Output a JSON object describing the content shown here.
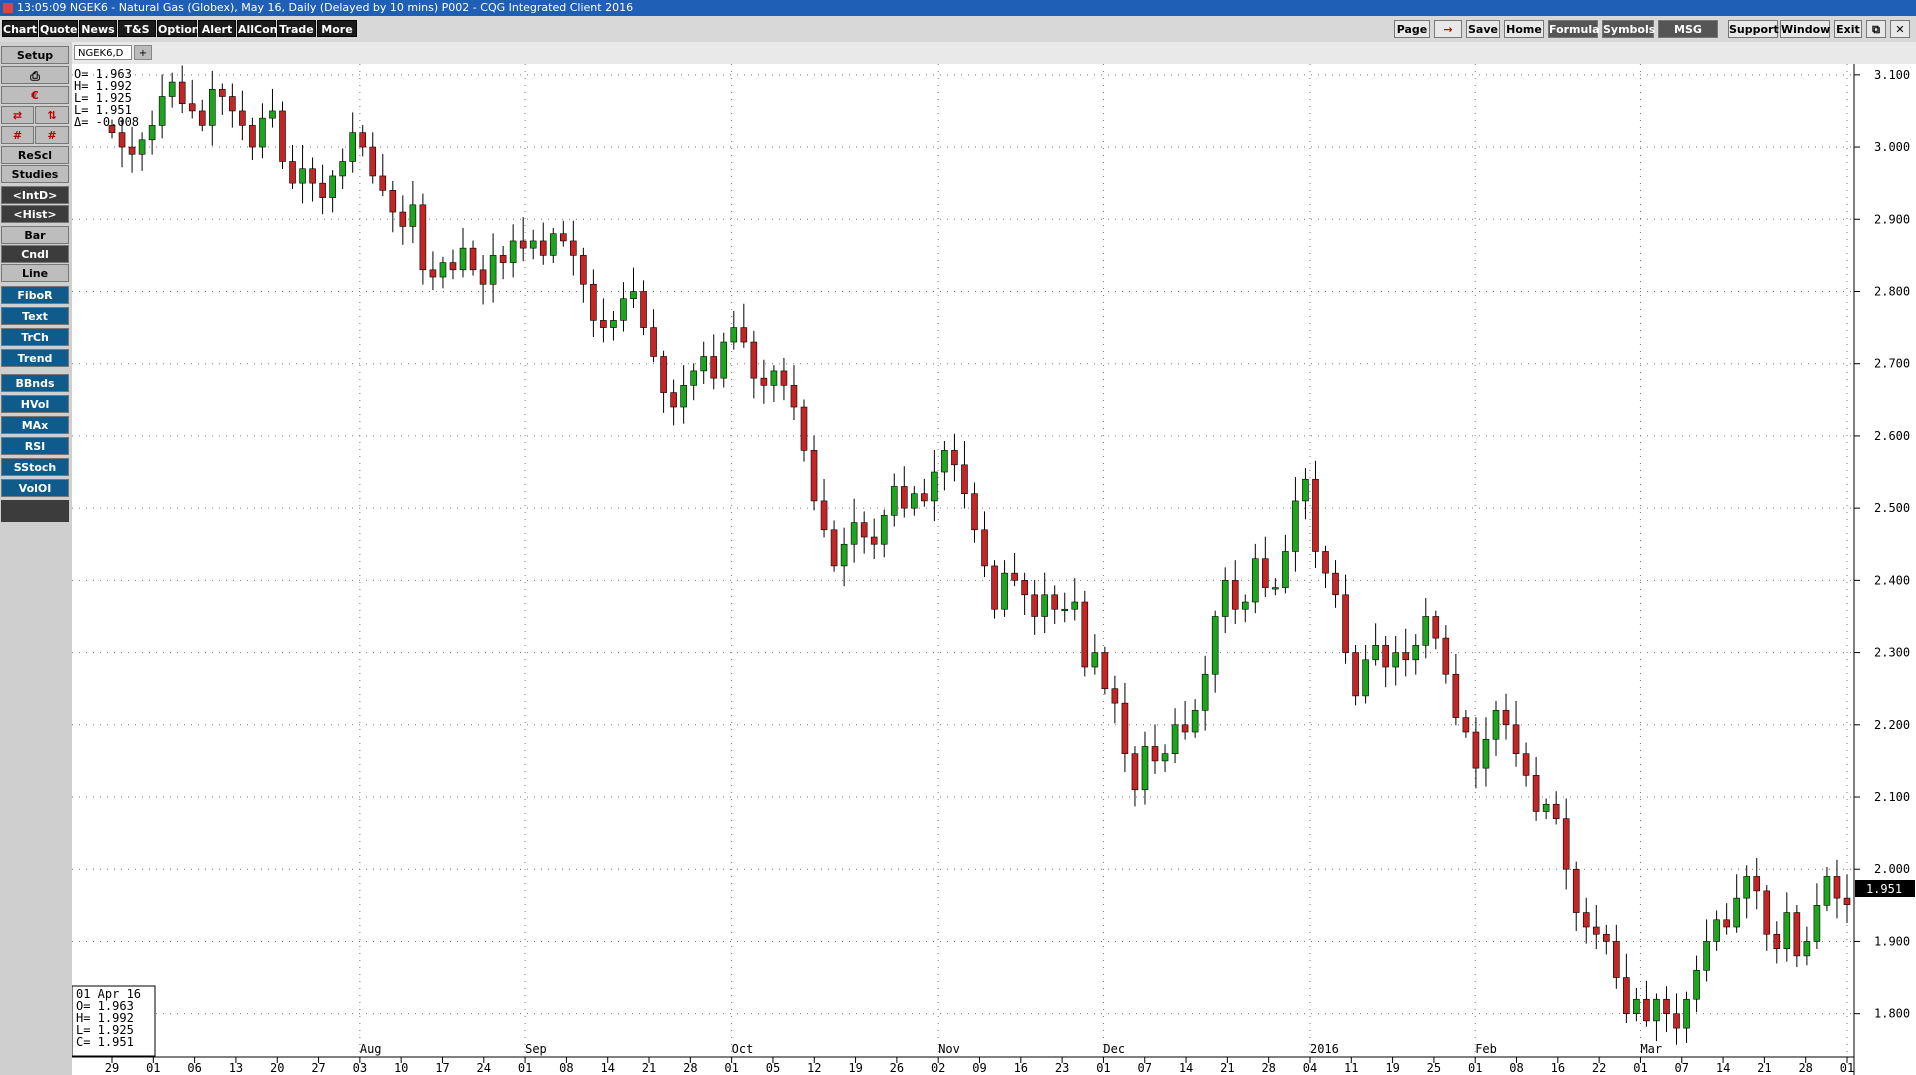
{
  "window": {
    "title": "13:05:09   NGEK6 - Natural Gas (Globex), May 16, Daily (Delayed by 10 mins)   P002 - CQG Integrated Client 2016"
  },
  "toolbar": {
    "left": [
      "Chart",
      "Quote",
      "News",
      "T&S",
      "Options",
      "Alert",
      "AllCon",
      "Trade",
      "More"
    ],
    "right": [
      "Page",
      "→",
      "Save",
      "Home",
      "Formula",
      "Symbols",
      "MSG Cntr",
      "Support",
      "Window",
      "Exit",
      "⧉",
      "✕"
    ]
  },
  "sidebar": {
    "setup": "Setup",
    "buttons": [
      "ReScl",
      "Studies",
      "<IntD>",
      "<Hist>",
      "Bar",
      "Cndl",
      "Line",
      "FiboR",
      "Text",
      "TrCh",
      "Trend",
      "BBnds",
      "HVol",
      "MAx",
      "RSI",
      "SStoch",
      "VolOI"
    ]
  },
  "tab": {
    "label": "NGEK6,D",
    "add": "+"
  },
  "ohlc_top": {
    "o": "O=   1.963",
    "h": "H=   1.992",
    "l": "L=   1.925",
    "c": "L=   1.951",
    "d": "Δ= -0.008"
  },
  "ohlc_bottom": {
    "date": "01 Apr 16",
    "o": "O=   1.963",
    "h": "H=   1.992",
    "l": "L=   1.925",
    "c": "C=   1.951"
  },
  "last_price": "1.951",
  "colors": {
    "up": "#1ea51e",
    "down": "#c42626",
    "grid": "#777777"
  },
  "chart_data": {
    "type": "candlestick",
    "symbol": "NGEK6",
    "interval": "Daily",
    "y_ticks": [
      "3.100",
      "3.000",
      "2.900",
      "2.800",
      "2.700",
      "2.600",
      "2.500",
      "2.400",
      "2.300",
      "2.200",
      "2.100",
      "2.000",
      "1.900",
      "1.800"
    ],
    "ylim": [
      1.74,
      3.115
    ],
    "day_labels": [
      "29",
      "01",
      "06",
      "13",
      "20",
      "27",
      "03",
      "10",
      "17",
      "24",
      "01",
      "08",
      "14",
      "21",
      "28",
      "01",
      "05",
      "12",
      "19",
      "26",
      "02",
      "09",
      "16",
      "23",
      "01",
      "07",
      "14",
      "21",
      "28",
      "04",
      "11",
      "19",
      "25",
      "01",
      "08",
      "16",
      "22",
      "01",
      "07",
      "14",
      "21",
      "28",
      "01"
    ],
    "month_labels": [
      "Aug",
      "Sep",
      "Oct",
      "Nov",
      "Dec",
      "2016",
      "Feb",
      "Mar"
    ],
    "closes": [
      3.02,
      3.0,
      2.99,
      3.01,
      3.03,
      3.07,
      3.09,
      3.06,
      3.05,
      3.03,
      3.08,
      3.07,
      3.05,
      3.03,
      3.0,
      3.04,
      3.05,
      2.98,
      2.95,
      2.97,
      2.95,
      2.93,
      2.96,
      2.98,
      3.02,
      3.0,
      2.96,
      2.94,
      2.91,
      2.89,
      2.92,
      2.83,
      2.82,
      2.84,
      2.83,
      2.86,
      2.83,
      2.81,
      2.85,
      2.84,
      2.87,
      2.86,
      2.87,
      2.85,
      2.88,
      2.87,
      2.85,
      2.81,
      2.76,
      2.75,
      2.76,
      2.79,
      2.8,
      2.75,
      2.71,
      2.66,
      2.64,
      2.67,
      2.69,
      2.71,
      2.68,
      2.73,
      2.75,
      2.73,
      2.68,
      2.67,
      2.69,
      2.67,
      2.64,
      2.58,
      2.51,
      2.47,
      2.42,
      2.45,
      2.48,
      2.46,
      2.45,
      2.49,
      2.53,
      2.5,
      2.52,
      2.51,
      2.55,
      2.58,
      2.56,
      2.52,
      2.47,
      2.42,
      2.36,
      2.41,
      2.4,
      2.38,
      2.35,
      2.38,
      2.36,
      2.36,
      2.37,
      2.28,
      2.3,
      2.25,
      2.23,
      2.16,
      2.11,
      2.17,
      2.15,
      2.16,
      2.2,
      2.19,
      2.22,
      2.27,
      2.35,
      2.4,
      2.36,
      2.37,
      2.43,
      2.39,
      2.39,
      2.44,
      2.51,
      2.54,
      2.44,
      2.41,
      2.38,
      2.3,
      2.24,
      2.29,
      2.31,
      2.28,
      2.3,
      2.29,
      2.31,
      2.35,
      2.32,
      2.27,
      2.21,
      2.19,
      2.14,
      2.18,
      2.22,
      2.2,
      2.16,
      2.13,
      2.08,
      2.09,
      2.07,
      2.0,
      1.94,
      1.92,
      1.91,
      1.9,
      1.85,
      1.8,
      1.82,
      1.79,
      1.82,
      1.8,
      1.78,
      1.82,
      1.86,
      1.9,
      1.93,
      1.92,
      1.96,
      1.99,
      1.97,
      1.91,
      1.89,
      1.94,
      1.88,
      1.9,
      1.95,
      1.99,
      1.96,
      1.951
    ]
  }
}
